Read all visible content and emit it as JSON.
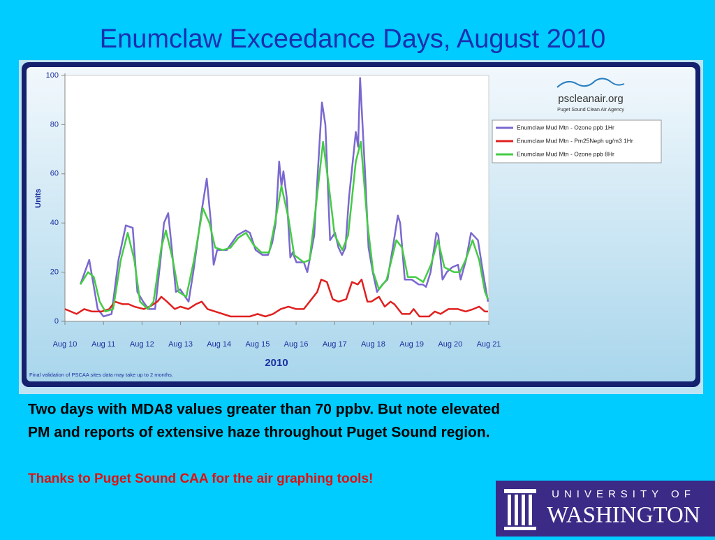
{
  "slide_title": "Enumclaw Exceedance Days, August 2010",
  "chart_data": {
    "type": "line",
    "y_label": "Units",
    "x_label": "2010",
    "footnote": "Final validation of PSCAA sites data may take up to 2 months.",
    "logo_name": "pscleanair.org",
    "logo_tagline": "Puget Sound Clean Air Agency",
    "legend": "right",
    "ylim": [
      0,
      100
    ],
    "yticks": [
      0,
      20,
      40,
      60,
      80,
      100
    ],
    "xlim": [
      10,
      21
    ],
    "xticks": [
      {
        "value": 10,
        "label": "Aug 10"
      },
      {
        "value": 11,
        "label": "Aug 11"
      },
      {
        "value": 12,
        "label": "Aug 12"
      },
      {
        "value": 13,
        "label": "Aug 13"
      },
      {
        "value": 14,
        "label": "Aug 14"
      },
      {
        "value": 15,
        "label": "Aug 15"
      },
      {
        "value": 16,
        "label": "Aug 16"
      },
      {
        "value": 17,
        "label": "Aug 17"
      },
      {
        "value": 18,
        "label": "Aug 18"
      },
      {
        "value": 19,
        "label": "Aug 19"
      },
      {
        "value": 20,
        "label": "Aug 20"
      },
      {
        "value": 21,
        "label": "Aug 21"
      }
    ],
    "series": [
      {
        "name": "Enumclaw Mud Mtn - Ozone  ppb  1Hr",
        "color": "#7b68d0",
        "x": [
          10.4,
          10.63,
          10.85,
          11.0,
          11.21,
          11.39,
          11.58,
          11.76,
          11.88,
          12.03,
          12.17,
          12.34,
          12.48,
          12.57,
          12.68,
          12.77,
          12.88,
          12.99,
          13.12,
          13.21,
          13.33,
          13.55,
          13.68,
          13.79,
          13.86,
          13.95,
          14.2,
          14.47,
          14.69,
          14.8,
          14.95,
          15.13,
          15.27,
          15.38,
          15.47,
          15.56,
          15.62,
          15.67,
          15.76,
          15.85,
          15.91,
          16.01,
          16.2,
          16.29,
          16.47,
          16.56,
          16.67,
          16.76,
          16.88,
          17.01,
          17.1,
          17.19,
          17.28,
          17.37,
          17.55,
          17.61,
          17.66,
          17.79,
          17.88,
          17.99,
          18.1,
          18.24,
          18.37,
          18.51,
          18.64,
          18.7,
          18.82,
          19.0,
          19.18,
          19.29,
          19.37,
          19.49,
          19.64,
          19.69,
          19.8,
          19.91,
          20.05,
          20.2,
          20.27,
          20.41,
          20.54,
          20.72,
          20.85,
          20.98
        ],
        "values": [
          15,
          25,
          5,
          2,
          3,
          25,
          39,
          38,
          12,
          8,
          5,
          5,
          25,
          40,
          44,
          30,
          12,
          13,
          10,
          8,
          20,
          45,
          58,
          40,
          23,
          29,
          29,
          35,
          37,
          36,
          29,
          27,
          27,
          32,
          40,
          65,
          55,
          61,
          50,
          26,
          28,
          24,
          24,
          20,
          35,
          60,
          89,
          80,
          33,
          36,
          30,
          27,
          30,
          50,
          77,
          71,
          99,
          60,
          30,
          20,
          12,
          15,
          17,
          30,
          43,
          40,
          17,
          17,
          15,
          15,
          14,
          20,
          36,
          35,
          17,
          20,
          22,
          23,
          17,
          25,
          36,
          33,
          20,
          8
        ]
      },
      {
        "name": "Enumclaw Mud Mtn - Pm25Neph  ug/m3  1Hr",
        "color": "#e02020",
        "x": [
          10.0,
          10.15,
          10.3,
          10.5,
          10.7,
          10.95,
          11.15,
          11.3,
          11.5,
          11.65,
          11.8,
          12.05,
          12.2,
          12.4,
          12.5,
          12.65,
          12.85,
          13.0,
          13.2,
          13.4,
          13.55,
          13.7,
          13.9,
          14.1,
          14.3,
          14.5,
          14.8,
          15.0,
          15.2,
          15.4,
          15.6,
          15.8,
          16.0,
          16.2,
          16.35,
          16.55,
          16.65,
          16.8,
          16.95,
          17.1,
          17.3,
          17.45,
          17.6,
          17.7,
          17.85,
          17.95,
          18.15,
          18.3,
          18.45,
          18.55,
          18.75,
          18.95,
          19.05,
          19.2,
          19.45,
          19.6,
          19.75,
          19.95,
          20.2,
          20.4,
          20.6,
          20.75,
          20.9,
          20.98
        ],
        "values": [
          5,
          4,
          3,
          5,
          4,
          4,
          5,
          8,
          7,
          7,
          6,
          5,
          6,
          8,
          10,
          8,
          5,
          6,
          5,
          7,
          8,
          5,
          4,
          3,
          2,
          2,
          2,
          3,
          2,
          3,
          5,
          6,
          5,
          5,
          8,
          12,
          17,
          16,
          9,
          8,
          9,
          16,
          15,
          17,
          8,
          8,
          10,
          6,
          8,
          7,
          3,
          3,
          5,
          2,
          2,
          4,
          3,
          5,
          5,
          4,
          5,
          6,
          4,
          4
        ]
      },
      {
        "name": "Enumclaw Mud Mtn - Ozone  ppb  8Hr",
        "color": "#44cc44",
        "x": [
          10.4,
          10.6,
          10.75,
          10.9,
          11.05,
          11.25,
          11.45,
          11.63,
          11.8,
          11.95,
          12.15,
          12.3,
          12.5,
          12.62,
          12.8,
          12.95,
          13.15,
          13.35,
          13.58,
          13.75,
          13.9,
          14.1,
          14.3,
          14.5,
          14.7,
          14.9,
          15.1,
          15.3,
          15.45,
          15.62,
          15.8,
          15.95,
          16.2,
          16.35,
          16.5,
          16.7,
          16.85,
          17.0,
          17.2,
          17.35,
          17.55,
          17.68,
          17.85,
          18.0,
          18.15,
          18.35,
          18.6,
          18.75,
          18.9,
          19.1,
          19.3,
          19.5,
          19.68,
          19.85,
          20.1,
          20.25,
          20.4,
          20.58,
          20.75,
          20.9,
          20.98
        ],
        "values": [
          15,
          20,
          18,
          8,
          4,
          5,
          25,
          36,
          25,
          8,
          5,
          8,
          30,
          37,
          25,
          12,
          10,
          25,
          46,
          40,
          30,
          29,
          30,
          34,
          36,
          31,
          28,
          28,
          40,
          55,
          42,
          27,
          24,
          25,
          45,
          73,
          55,
          35,
          29,
          35,
          65,
          73,
          40,
          20,
          13,
          17,
          33,
          30,
          18,
          18,
          16,
          23,
          33,
          22,
          20,
          20,
          25,
          33,
          25,
          12,
          9
        ]
      }
    ]
  },
  "notes": {
    "line1": "Two days with MDA8 values greater than 70 ppbv.  But note elevated",
    "line2": "PM and reports of extensive haze throughout Puget Sound region.",
    "thanks": "Thanks to Puget Sound CAA for the air graphing tools!"
  },
  "uw_logo": {
    "top": "UNIVERSITY OF",
    "bottom": "WASHINGTON"
  }
}
